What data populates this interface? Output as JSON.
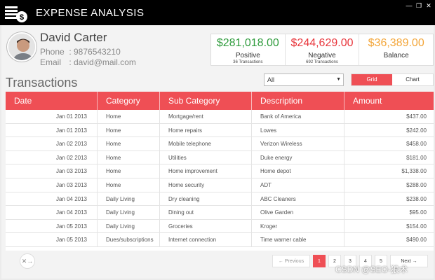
{
  "window": {
    "title": "EXPENSE ANALYSIS",
    "minimize": "—",
    "restore": "❐",
    "close": "✕"
  },
  "profile": {
    "name": "David Carter",
    "phone_label": "Phone",
    "phone_value": ": 9876543210",
    "email_label": "Email",
    "email_value": ": david@mail.com"
  },
  "summary": {
    "positive": {
      "amount": "$281,018.00",
      "label": "Positive",
      "sub": "36 Transactions",
      "color": "#2e9b3c"
    },
    "negative": {
      "amount": "$244,629.00",
      "label": "Negative",
      "sub": "692 Transactions",
      "color": "#e8363c"
    },
    "balance": {
      "amount": "$36,389.00",
      "label": "Balance",
      "color": "#f3a63a"
    }
  },
  "transactions": {
    "title": "Transactions",
    "filter_value": "All",
    "view_options": [
      "Grid",
      "Chart"
    ],
    "active_view": "Grid",
    "columns": [
      "Date",
      "Category",
      "Sub Category",
      "Description",
      "Amount"
    ],
    "rows": [
      [
        "Jan 01 2013",
        "Home",
        "Mortgage/rent",
        "Bank of America",
        "$437.00"
      ],
      [
        "Jan 01 2013",
        "Home",
        "Home repairs",
        "Lowes",
        "$242.00"
      ],
      [
        "Jan 02 2013",
        "Home",
        "Mobile telephone",
        "Verizon Wireless",
        "$458.00"
      ],
      [
        "Jan 02 2013",
        "Home",
        "Utilities",
        "Duke energy",
        "$181.00"
      ],
      [
        "Jan 03 2013",
        "Home",
        "Home improvement",
        "Home depot",
        "$1,338.00"
      ],
      [
        "Jan 03 2013",
        "Home",
        "Home security",
        "ADT",
        "$288.00"
      ],
      [
        "Jan 04 2013",
        "Daily Living",
        "Dry cleaning",
        "ABC Cleaners",
        "$238.00"
      ],
      [
        "Jan 04 2013",
        "Daily Living",
        "Dining out",
        "Olive Garden",
        "$95.00"
      ],
      [
        "Jan 05 2013",
        "Daily Living",
        "Groceries",
        "Kroger",
        "$154.00"
      ],
      [
        "Jan 05 2013",
        "Dues/subscriptions",
        "Internet connection",
        "Time warner cable",
        "$490.00"
      ]
    ]
  },
  "pager": {
    "previous": "← Previous",
    "pages": [
      "1",
      "2",
      "3",
      "4",
      "5"
    ],
    "active_page": "1",
    "next": "Next →"
  },
  "accent_color": "#ef4f55",
  "watermark": "CSDN @SEO-狼术",
  "icons": {
    "logo": "coin-stack-icon",
    "export": "export-icon"
  }
}
